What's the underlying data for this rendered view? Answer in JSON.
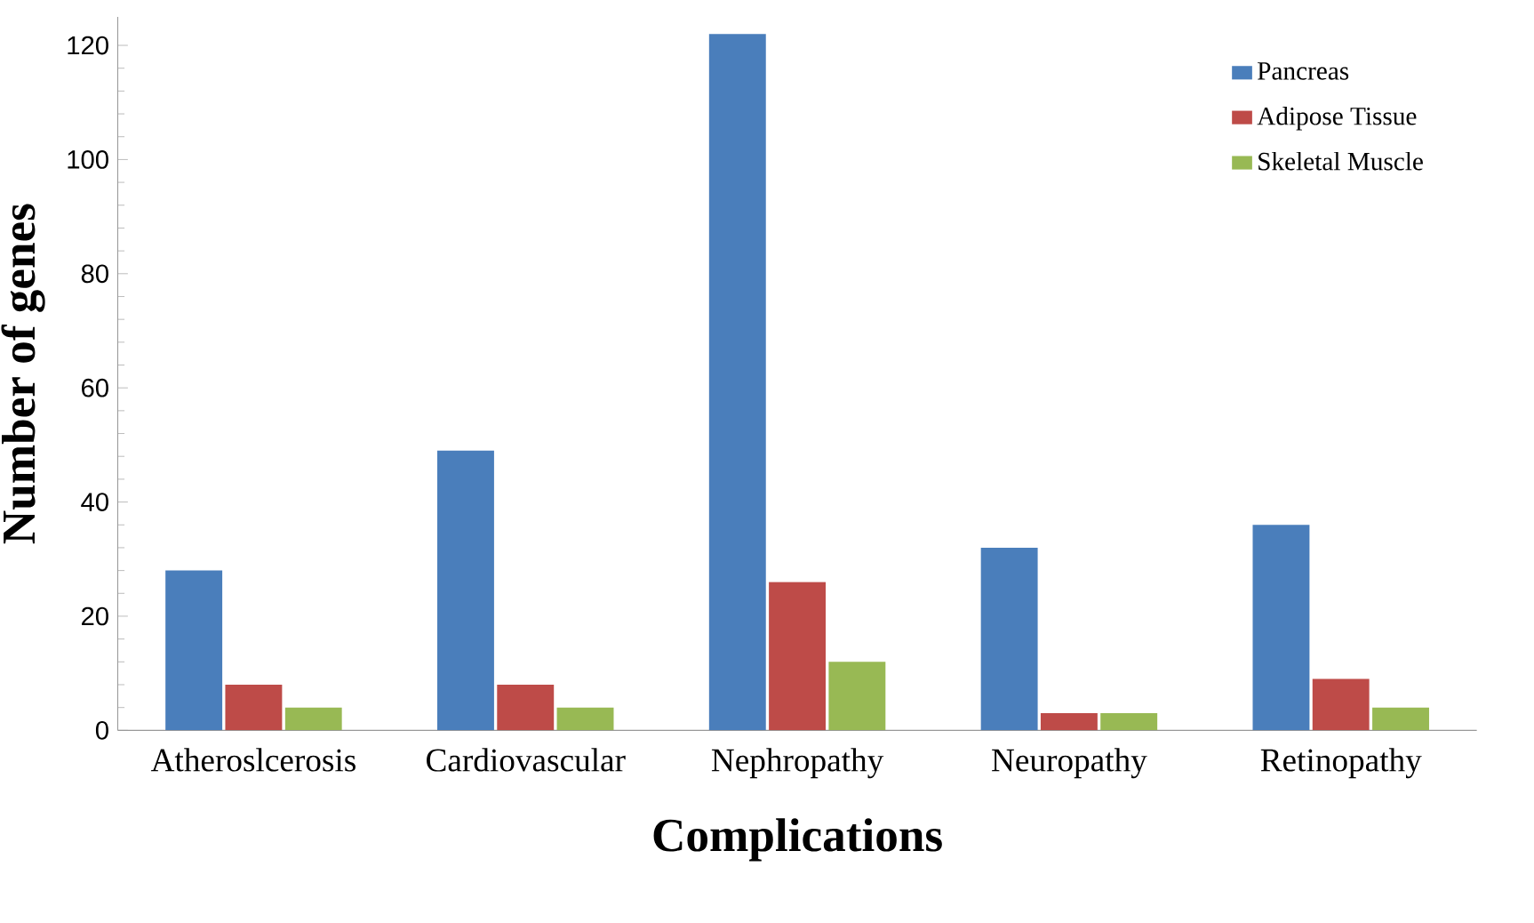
{
  "chart_data": {
    "type": "bar",
    "xlabel": "Complications",
    "ylabel": "Number  of genes",
    "categories": [
      "Atheroslcerosis",
      "Cardiovascular",
      "Nephropathy",
      "Neuropathy",
      "Retinopathy"
    ],
    "series": [
      {
        "name": "Pancreas",
        "color": "#4a7ebb",
        "values": [
          28,
          49,
          122,
          32,
          36
        ]
      },
      {
        "name": "Adipose Tissue",
        "color": "#be4b48",
        "values": [
          8,
          8,
          26,
          3,
          9
        ]
      },
      {
        "name": "Skeletal Muscle",
        "color": "#98b954",
        "values": [
          4,
          4,
          12,
          3,
          4
        ]
      }
    ],
    "ylim": [
      0,
      125
    ],
    "yticks": [
      0,
      20,
      40,
      60,
      80,
      100,
      120
    ],
    "grid": false,
    "legend": "top right"
  }
}
